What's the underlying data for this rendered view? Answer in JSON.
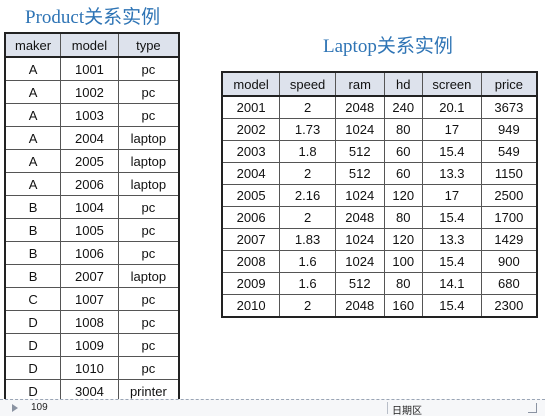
{
  "product": {
    "title": "Product关系实例",
    "columns": [
      "maker",
      "model",
      "type"
    ],
    "rows": [
      [
        "A",
        "1001",
        "pc"
      ],
      [
        "A",
        "1002",
        "pc"
      ],
      [
        "A",
        "1003",
        "pc"
      ],
      [
        "A",
        "2004",
        "laptop"
      ],
      [
        "A",
        "2005",
        "laptop"
      ],
      [
        "A",
        "2006",
        "laptop"
      ],
      [
        "B",
        "1004",
        "pc"
      ],
      [
        "B",
        "1005",
        "pc"
      ],
      [
        "B",
        "1006",
        "pc"
      ],
      [
        "B",
        "2007",
        "laptop"
      ],
      [
        "C",
        "1007",
        "pc"
      ],
      [
        "D",
        "1008",
        "pc"
      ],
      [
        "D",
        "1009",
        "pc"
      ],
      [
        "D",
        "1010",
        "pc"
      ],
      [
        "D",
        "3004",
        "printer"
      ]
    ]
  },
  "laptop": {
    "title": "Laptop关系实例",
    "columns": [
      "model",
      "speed",
      "ram",
      "hd",
      "screen",
      "price"
    ],
    "rows": [
      [
        "2001",
        "2",
        "2048",
        "240",
        "20.1",
        "3673"
      ],
      [
        "2002",
        "1.73",
        "1024",
        "80",
        "17",
        "949"
      ],
      [
        "2003",
        "1.8",
        "512",
        "60",
        "15.4",
        "549"
      ],
      [
        "2004",
        "2",
        "512",
        "60",
        "13.3",
        "1150"
      ],
      [
        "2005",
        "2.16",
        "1024",
        "120",
        "17",
        "2500"
      ],
      [
        "2006",
        "2",
        "2048",
        "80",
        "15.4",
        "1700"
      ],
      [
        "2007",
        "1.83",
        "1024",
        "120",
        "13.3",
        "1429"
      ],
      [
        "2008",
        "1.6",
        "1024",
        "100",
        "15.4",
        "900"
      ],
      [
        "2009",
        "1.6",
        "512",
        "80",
        "14.1",
        "680"
      ],
      [
        "2010",
        "2",
        "2048",
        "160",
        "15.4",
        "2300"
      ]
    ]
  },
  "footer": {
    "page_number": "109",
    "date_label": "日期区"
  },
  "colors": {
    "title": "#2e74b5",
    "header_bg": "#dde2ec"
  }
}
